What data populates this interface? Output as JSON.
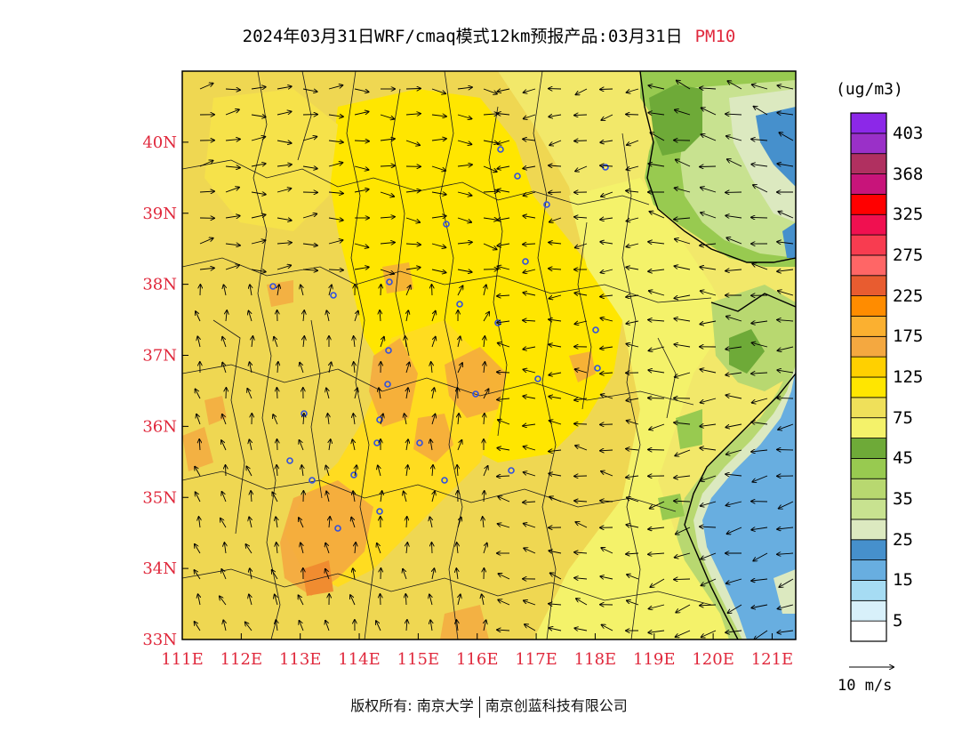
{
  "header": {
    "title": "2024年03月31日WRF/cmaq模式12km预报产品:03月31日",
    "pollutant": "PM10"
  },
  "map": {
    "lon_range": [
      111,
      121.4
    ],
    "lat_range": [
      33,
      41
    ],
    "lon_ticks": [
      "111E",
      "112E",
      "113E",
      "114E",
      "115E",
      "116E",
      "117E",
      "118E",
      "119E",
      "120E",
      "121E"
    ],
    "lat_ticks": [
      "33N",
      "34N",
      "35N",
      "36N",
      "37N",
      "38N",
      "39N",
      "40N"
    ],
    "label_color": "#e0283c",
    "wind_direction": "generally from east/southeast over the sea, southerly/southwesterly inland"
  },
  "colorbar": {
    "unit": "(ug/m3)",
    "colors": [
      "#ffffff",
      "#d8f0fa",
      "#a6dcf3",
      "#68aee0",
      "#4690cc",
      "#dce9c0",
      "#c8e290",
      "#b8d870",
      "#98ca50",
      "#6eaa38",
      "#f4f26a",
      "#efe05a",
      "#ffe600",
      "#ffd000",
      "#f4a840",
      "#fbb030",
      "#ff8c00",
      "#e85c30",
      "#ff6666",
      "#f83c50",
      "#f01050",
      "#ff0000",
      "#c8147a",
      "#b03060",
      "#9a30c8",
      "#8c28e8"
    ],
    "labels": [
      "5",
      "15",
      "25",
      "35",
      "45",
      "75",
      "125",
      "175",
      "225",
      "275",
      "325",
      "368",
      "403"
    ],
    "reference_vector": "10 m/s"
  },
  "footer": {
    "credit_left": "版权所有: 南京大学",
    "credit_right": "南京创蓝科技有限公司"
  }
}
